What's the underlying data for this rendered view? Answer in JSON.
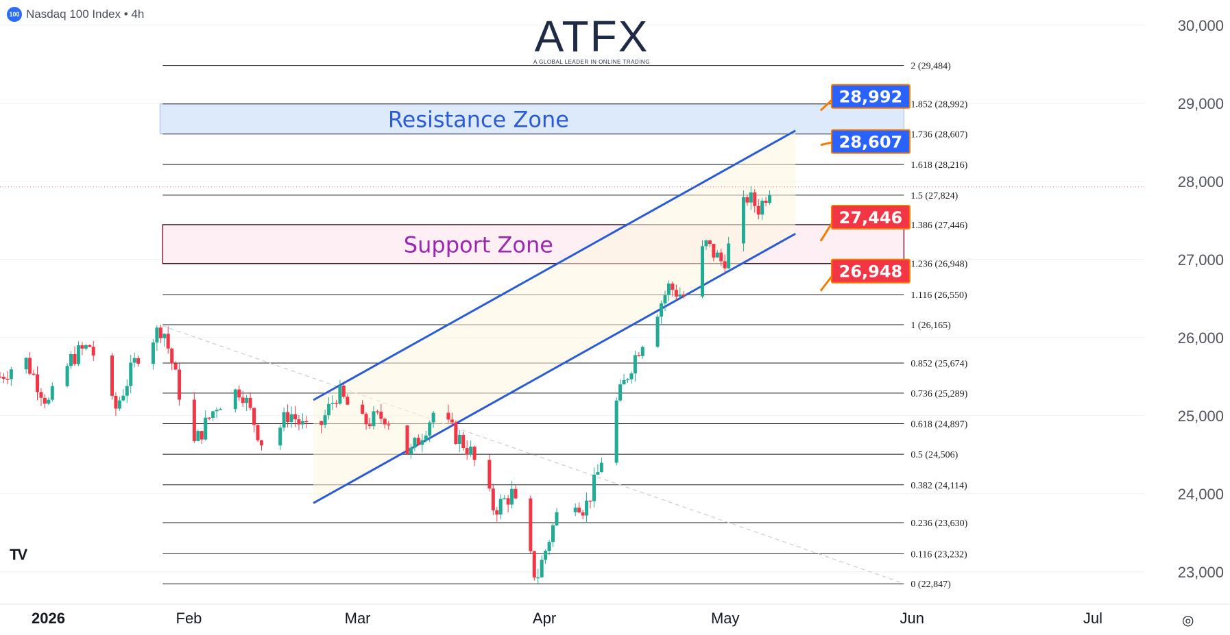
{
  "header": {
    "symbol_badge": "100",
    "title": "Nasdaq 100 Index • 4h"
  },
  "brand": {
    "name": "ATFX",
    "tagline": "A GLOBAL LEADER IN ONLINE TRADING",
    "accent": "#ff6a00"
  },
  "colors": {
    "up": "#22ab94",
    "down": "#f23645",
    "channel": "#2a5bd7",
    "resistance_fill": "#dce9fb",
    "support_fill": "#fdeff3",
    "support_border": "#7a0c3a",
    "resistance_text": "#2a5bd7",
    "support_text": "#9c27b0",
    "badge_blue": "#2962ff",
    "badge_red": "#f23645",
    "badge_border": "#f57c00"
  },
  "chart_data": {
    "type": "candlestick",
    "ylim": [
      22700,
      30200
    ],
    "x_axis": {
      "range": [
        "2026-01-01",
        "2026-07-10"
      ],
      "ticks": [
        {
          "label": "2026",
          "date": "2026-01-01"
        },
        {
          "label": "Feb",
          "date": "2026-02-01"
        },
        {
          "label": "Mar",
          "date": "2026-03-01"
        },
        {
          "label": "Apr",
          "date": "2026-04-01"
        },
        {
          "label": "May",
          "date": "2026-05-01"
        },
        {
          "label": "Jun",
          "date": "2026-06-01"
        },
        {
          "label": "Jul",
          "date": "2026-07-01"
        }
      ]
    },
    "y_axis": {
      "ticks": [
        {
          "label": "30,000",
          "value": 30000
        },
        {
          "label": "29,000",
          "value": 29000
        },
        {
          "label": "28,000",
          "value": 28000
        },
        {
          "label": "27,000",
          "value": 27000
        },
        {
          "label": "26,000",
          "value": 26000
        },
        {
          "label": "25,000",
          "value": 25000
        },
        {
          "label": "24,000",
          "value": 24000
        },
        {
          "label": "23,000",
          "value": 23000
        }
      ]
    },
    "last_price": 27930,
    "series_points": [
      [
        "2026-01-01",
        25500
      ],
      [
        "2026-01-05",
        25750
      ],
      [
        "2026-01-09",
        25150
      ],
      [
        "2026-01-13",
        25750
      ],
      [
        "2026-01-16",
        25900
      ],
      [
        "2026-01-20",
        25050
      ],
      [
        "2026-01-24",
        25800
      ],
      [
        "2026-01-28",
        26150
      ],
      [
        "2026-02-02",
        24600
      ],
      [
        "2026-02-06",
        25150
      ],
      [
        "2026-02-10",
        25350
      ],
      [
        "2026-02-14",
        24550
      ],
      [
        "2026-02-18",
        25050
      ],
      [
        "2026-02-22",
        24700
      ],
      [
        "2026-02-26",
        25300
      ],
      [
        "2026-03-02",
        24900
      ],
      [
        "2026-03-06",
        25000
      ],
      [
        "2026-03-10",
        24500
      ],
      [
        "2026-03-14",
        25050
      ],
      [
        "2026-03-17",
        24800
      ],
      [
        "2026-03-20",
        24550
      ],
      [
        "2026-03-24",
        23800
      ],
      [
        "2026-03-27",
        24000
      ],
      [
        "2026-03-31",
        22900
      ],
      [
        "2026-04-02",
        23400
      ],
      [
        "2026-04-05",
        24100
      ],
      [
        "2026-04-08",
        23800
      ],
      [
        "2026-04-10",
        24200
      ],
      [
        "2026-04-13",
        25100
      ],
      [
        "2026-04-16",
        25700
      ],
      [
        "2026-04-19",
        26200
      ],
      [
        "2026-04-22",
        26650
      ],
      [
        "2026-04-25",
        26500
      ],
      [
        "2026-04-28",
        27200
      ],
      [
        "2026-05-01",
        26950
      ],
      [
        "2026-05-03",
        27400
      ],
      [
        "2026-05-05",
        27800
      ],
      [
        "2026-05-07",
        27650
      ],
      [
        "2026-05-09",
        27980
      ]
    ],
    "fibonacci": {
      "range": [
        "2026-01-28",
        "2026-05-31"
      ],
      "levels": [
        {
          "ratio": "2",
          "value": 29484,
          "label": "2 (29,484)"
        },
        {
          "ratio": "1.852",
          "value": 28992,
          "label": "1.852 (28,992)"
        },
        {
          "ratio": "1.736",
          "value": 28607,
          "label": "1.736 (28,607)"
        },
        {
          "ratio": "1.618",
          "value": 28216,
          "label": "1.618 (28,216)"
        },
        {
          "ratio": "1.5",
          "value": 27824,
          "label": "1.5 (27,824)"
        },
        {
          "ratio": "1.386",
          "value": 27446,
          "label": "1.386 (27,446)"
        },
        {
          "ratio": "1.236",
          "value": 26948,
          "label": "1.236 (26,948)"
        },
        {
          "ratio": "1.116",
          "value": 26550,
          "label": "1.116 (26,550)"
        },
        {
          "ratio": "1",
          "value": 26165,
          "label": "1 (26,165)"
        },
        {
          "ratio": "0.852",
          "value": 25674,
          "label": "0.852 (25,674)"
        },
        {
          "ratio": "0.736",
          "value": 25289,
          "label": "0.736 (25,289)"
        },
        {
          "ratio": "0.618",
          "value": 24897,
          "label": "0.618 (24,897)"
        },
        {
          "ratio": "0.5",
          "value": 24506,
          "label": "0.5 (24,506)"
        },
        {
          "ratio": "0.382",
          "value": 24114,
          "label": "0.382 (24,114)"
        },
        {
          "ratio": "0.236",
          "value": 23630,
          "label": "0.236 (23,630)"
        },
        {
          "ratio": "0.116",
          "value": 23232,
          "label": "0.116 (23,232)"
        },
        {
          "ratio": "0",
          "value": 22847,
          "label": "0 (22,847)"
        }
      ]
    },
    "zones": [
      {
        "name": "Resistance Zone",
        "from": 28607,
        "to": 28992,
        "range": [
          "2026-01-28",
          "2026-05-31"
        ]
      },
      {
        "name": "Support Zone",
        "from": 26948,
        "to": 27446,
        "range": [
          "2026-01-28",
          "2026-05-31"
        ]
      }
    ],
    "channel": {
      "upper": [
        [
          "2026-02-22",
          25200
        ],
        [
          "2026-05-13",
          28650
        ]
      ],
      "lower": [
        [
          "2026-02-22",
          23880
        ],
        [
          "2026-05-13",
          27330
        ]
      ]
    },
    "trendline_dashed": [
      [
        "2026-01-28",
        26150
      ],
      [
        "2026-05-31",
        22850
      ]
    ],
    "callouts": [
      {
        "text": "28,992",
        "value": 28992,
        "color": "blue"
      },
      {
        "text": "28,607",
        "value": 28607,
        "color": "blue"
      },
      {
        "text": "27,446",
        "value": 27446,
        "color": "red"
      },
      {
        "text": "26,948",
        "value": 26948,
        "color": "red"
      }
    ]
  }
}
